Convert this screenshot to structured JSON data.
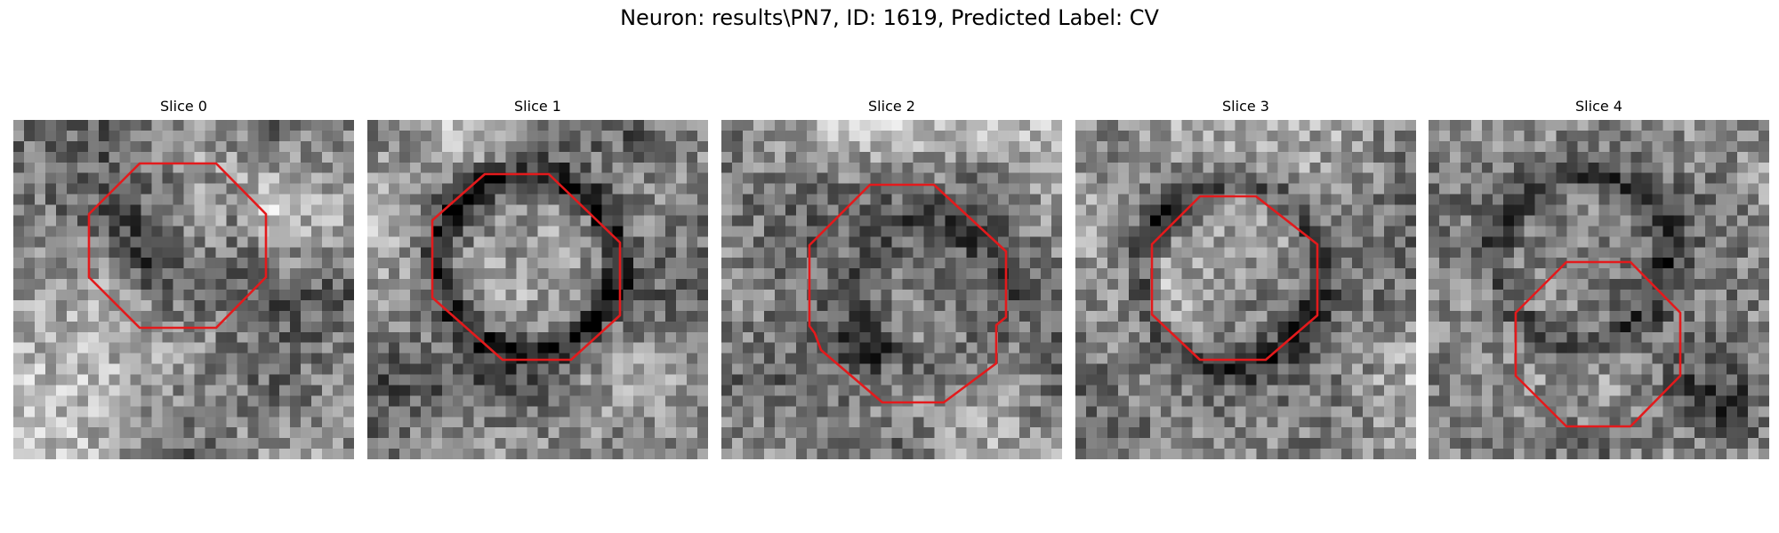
{
  "figure": {
    "title": "Neuron: results\\PN7, ID: 1619, Predicted Label: CV"
  },
  "panels": [
    {
      "title": "Slice 0"
    },
    {
      "title": "Slice 1"
    },
    {
      "title": "Slice 2"
    },
    {
      "title": "Slice 3"
    },
    {
      "title": "Slice 4"
    }
  ],
  "colors": {
    "contour": "#e31a1c",
    "background": "#ffffff",
    "text": "#000000"
  },
  "image": {
    "colormap": "grayscale"
  }
}
